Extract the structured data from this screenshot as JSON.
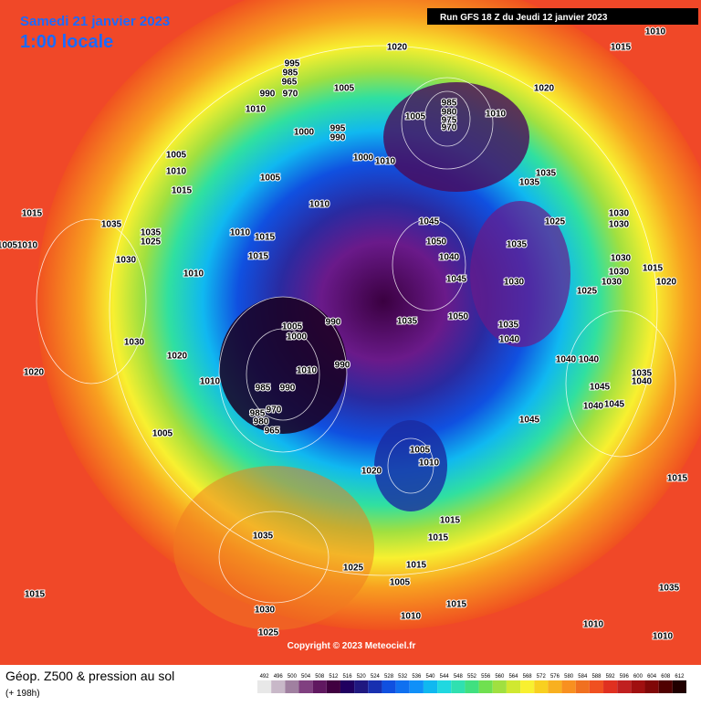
{
  "header": {
    "date": "Samedi 21 janvier 2023",
    "local_time": "1:00 locale",
    "run": "Run GFS 18 Z du Jeudi 12 janvier 2023"
  },
  "footer": {
    "copyright": "Copyright © 2023 Meteociel.fr",
    "title": "Géop. Z500 & pression au sol",
    "lead_time": "(+ 198h)",
    "scale": [
      492,
      496,
      500,
      504,
      508,
      512,
      516,
      520,
      524,
      528,
      532,
      536,
      540,
      544,
      548,
      552,
      556,
      560,
      564,
      568,
      572,
      576,
      580,
      584,
      588,
      592,
      596,
      600,
      604,
      608,
      612
    ]
  },
  "pressure_labels": [
    1020,
    1015,
    1010,
    995,
    985,
    965,
    990,
    970,
    1005,
    1020,
    1010,
    985,
    980,
    975,
    970,
    1005,
    1010,
    1000,
    995,
    990,
    1005,
    1000,
    1010,
    1010,
    1005,
    1035,
    1035,
    1015,
    1010,
    1015,
    1045,
    1025,
    1030,
    1030,
    1035,
    1035,
    1025,
    1010,
    1015,
    1050,
    1035,
    1005,
    1010,
    1030,
    1015,
    1040,
    1030,
    1015,
    1010,
    1045,
    1030,
    1030,
    1030,
    1025,
    1020,
    1005,
    990,
    1050,
    1035,
    1035,
    1000,
    1030,
    1040,
    1020,
    990,
    1010,
    1040,
    1040,
    1020,
    1010,
    985,
    990,
    1035,
    1040,
    1045,
    1045,
    1040,
    985,
    980,
    970,
    965,
    1045,
    1005,
    1005,
    1010,
    1020,
    1015,
    1015,
    1035,
    1015,
    1025,
    1015,
    1005,
    1015,
    1030,
    1015,
    1010,
    1035,
    1010,
    1010,
    1025
  ]
}
